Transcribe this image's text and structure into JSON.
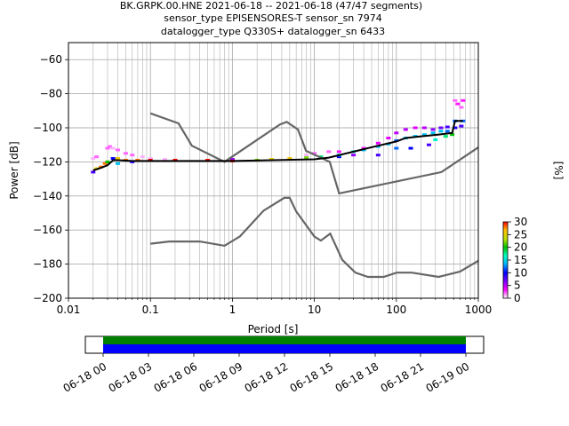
{
  "title_lines": [
    "BK.GRPK.00.HNE   2021-06-18 -- 2021-06-18  (47/47 segments)",
    "sensor_type EPISENSORES-T sensor_sn 7974",
    "datalogger_type Q330S+ datalogger_sn 6433"
  ],
  "chart_data": {
    "type": "heatmap",
    "xlabel": "Period [s]",
    "ylabel": "Power [dB]",
    "xscale": "log",
    "xlim": [
      0.01,
      1000
    ],
    "ylim": [
      -200,
      -50
    ],
    "x_ticks": [
      {
        "v": 0.01,
        "label": "0.01"
      },
      {
        "v": 0.1,
        "label": "0.1"
      },
      {
        "v": 1,
        "label": "1"
      },
      {
        "v": 10,
        "label": "10"
      },
      {
        "v": 100,
        "label": "100"
      },
      {
        "v": 1000,
        "label": "1000"
      }
    ],
    "y_ticks": [
      {
        "v": -60,
        "label": "−60"
      },
      {
        "v": -80,
        "label": "−80"
      },
      {
        "v": -100,
        "label": "−100"
      },
      {
        "v": -120,
        "label": "−120"
      },
      {
        "v": -140,
        "label": "−140"
      },
      {
        "v": -160,
        "label": "−160"
      },
      {
        "v": -180,
        "label": "−180"
      },
      {
        "v": -200,
        "label": "−200"
      }
    ],
    "grid": true,
    "colorbar": {
      "label": "[%]",
      "range": [
        0,
        30
      ],
      "ticks": [
        {
          "v": 0,
          "label": "0"
        },
        {
          "v": 5,
          "label": "5"
        },
        {
          "v": 10,
          "label": "10"
        },
        {
          "v": 15,
          "label": "15"
        },
        {
          "v": 20,
          "label": "20"
        },
        {
          "v": 25,
          "label": "25"
        },
        {
          "v": 30,
          "label": "30"
        }
      ],
      "colors": [
        "#ffffff",
        "#ff00ff",
        "#7a00ff",
        "#0000ff",
        "#00b0ff",
        "#00ffc0",
        "#00c000",
        "#c0e000",
        "#ffc000",
        "#ff0000"
      ]
    },
    "new_high_noise_model": [
      [
        0.1,
        -91.5
      ],
      [
        0.22,
        -97.4
      ],
      [
        0.32,
        -110.5
      ],
      [
        0.8,
        -120
      ],
      [
        3.8,
        -98
      ],
      [
        4.6,
        -96.5
      ],
      [
        6.3,
        -101
      ],
      [
        7.9,
        -113.5
      ],
      [
        15.4,
        -120
      ],
      [
        20,
        -138.5
      ],
      [
        354.8,
        -126
      ],
      [
        1000,
        -111.5
      ]
    ],
    "new_low_noise_model": [
      [
        0.1,
        -168
      ],
      [
        0.17,
        -166.7
      ],
      [
        0.4,
        -166.7
      ],
      [
        0.8,
        -169.2
      ],
      [
        1.24,
        -163.7
      ],
      [
        2.4,
        -148.6
      ],
      [
        4.3,
        -141.1
      ],
      [
        5,
        -141.1
      ],
      [
        6,
        -149
      ],
      [
        10,
        -163.8
      ],
      [
        12,
        -166.2
      ],
      [
        15.6,
        -162.1
      ],
      [
        21.9,
        -177.5
      ],
      [
        31.6,
        -185
      ],
      [
        45,
        -187.5
      ],
      [
        70,
        -187.5
      ],
      [
        101,
        -185
      ],
      [
        154,
        -185
      ],
      [
        328,
        -187.5
      ],
      [
        600,
        -184.4
      ],
      [
        1000,
        -178
      ]
    ],
    "median": [
      [
        0.02,
        -125
      ],
      [
        0.025,
        -123.5
      ],
      [
        0.03,
        -122
      ],
      [
        0.035,
        -119
      ],
      [
        0.04,
        -119
      ],
      [
        0.06,
        -119.5
      ],
      [
        0.1,
        -119.5
      ],
      [
        1,
        -119.5
      ],
      [
        3,
        -119
      ],
      [
        10,
        -118.5
      ],
      [
        15,
        -117.5
      ],
      [
        30,
        -114
      ],
      [
        60,
        -110.5
      ],
      [
        100,
        -108
      ],
      [
        130,
        -106
      ],
      [
        200,
        -105
      ],
      [
        320,
        -104
      ],
      [
        480,
        -103
      ],
      [
        520,
        -96
      ],
      [
        650,
        -96
      ]
    ],
    "mode_points": [
      [
        0.02,
        -126,
        8
      ],
      [
        0.022,
        -124,
        25
      ],
      [
        0.025,
        -123,
        28
      ],
      [
        0.028,
        -121,
        28
      ],
      [
        0.03,
        -120,
        20
      ],
      [
        0.035,
        -118,
        10
      ],
      [
        0.04,
        -118,
        26
      ],
      [
        0.05,
        -119,
        28
      ],
      [
        0.07,
        -119,
        28
      ],
      [
        0.1,
        -119,
        30
      ],
      [
        0.2,
        -119,
        30
      ],
      [
        0.5,
        -119,
        30
      ],
      [
        1,
        -119.5,
        30
      ],
      [
        2,
        -119,
        22
      ],
      [
        3,
        -118.5,
        25
      ],
      [
        5,
        -118,
        26
      ],
      [
        8,
        -117.5,
        22
      ],
      [
        12,
        -117,
        18
      ],
      [
        20,
        -116,
        16
      ],
      [
        30,
        -114,
        16
      ],
      [
        40,
        -113,
        14
      ],
      [
        60,
        -111,
        14
      ],
      [
        80,
        -109.5,
        14
      ],
      [
        100,
        -107.5,
        12
      ],
      [
        130,
        -106,
        14
      ],
      [
        170,
        -105,
        14
      ],
      [
        220,
        -104,
        14
      ],
      [
        280,
        -103,
        14
      ],
      [
        350,
        -102,
        14
      ],
      [
        420,
        -102,
        12
      ],
      [
        520,
        -96,
        12
      ],
      [
        650,
        -96,
        12
      ]
    ],
    "spread_points": [
      [
        0.02,
        -118,
        1
      ],
      [
        0.022,
        -117,
        2
      ],
      [
        0.03,
        -112,
        2
      ],
      [
        0.032,
        -111,
        2
      ],
      [
        0.035,
        -112,
        1
      ],
      [
        0.04,
        -113,
        2
      ],
      [
        0.05,
        -115,
        2
      ],
      [
        0.06,
        -116,
        2
      ],
      [
        0.08,
        -117,
        1
      ],
      [
        0.1,
        -118,
        1
      ],
      [
        0.15,
        -118.5,
        1
      ],
      [
        8,
        -116,
        1
      ],
      [
        10,
        -115,
        2
      ],
      [
        15,
        -114,
        2
      ],
      [
        20,
        -114,
        3
      ],
      [
        40,
        -112,
        3
      ],
      [
        60,
        -109,
        4
      ],
      [
        80,
        -106,
        4
      ],
      [
        100,
        -103,
        5
      ],
      [
        130,
        -101,
        5
      ],
      [
        170,
        -100,
        4
      ],
      [
        220,
        -100,
        5
      ],
      [
        280,
        -101,
        6
      ],
      [
        350,
        -100,
        7
      ],
      [
        420,
        -99.5,
        8
      ],
      [
        520,
        -84,
        2
      ],
      [
        560,
        -86,
        3
      ],
      [
        620,
        -88,
        2
      ],
      [
        650,
        -84,
        3
      ],
      [
        520,
        -100,
        9
      ],
      [
        620,
        -99,
        8
      ],
      [
        100,
        -112,
        12
      ],
      [
        150,
        -112,
        10
      ],
      [
        250,
        -110,
        8
      ],
      [
        300,
        -107,
        16
      ],
      [
        400,
        -105,
        18
      ],
      [
        480,
        -104,
        20
      ],
      [
        60,
        -116,
        8
      ],
      [
        30,
        -116,
        6
      ],
      [
        20,
        -117,
        10
      ],
      [
        1,
        -118.5,
        6
      ],
      [
        0.04,
        -121,
        14
      ],
      [
        0.06,
        -120,
        9
      ]
    ]
  },
  "timeline": {
    "tick_labels": [
      "06-18 00",
      "06-18 03",
      "06-18 06",
      "06-18 09",
      "06-18 12",
      "06-18 15",
      "06-18 18",
      "06-18 21",
      "06-19 00"
    ],
    "data_color": "#008000",
    "coverage_color": "#0000ff"
  }
}
